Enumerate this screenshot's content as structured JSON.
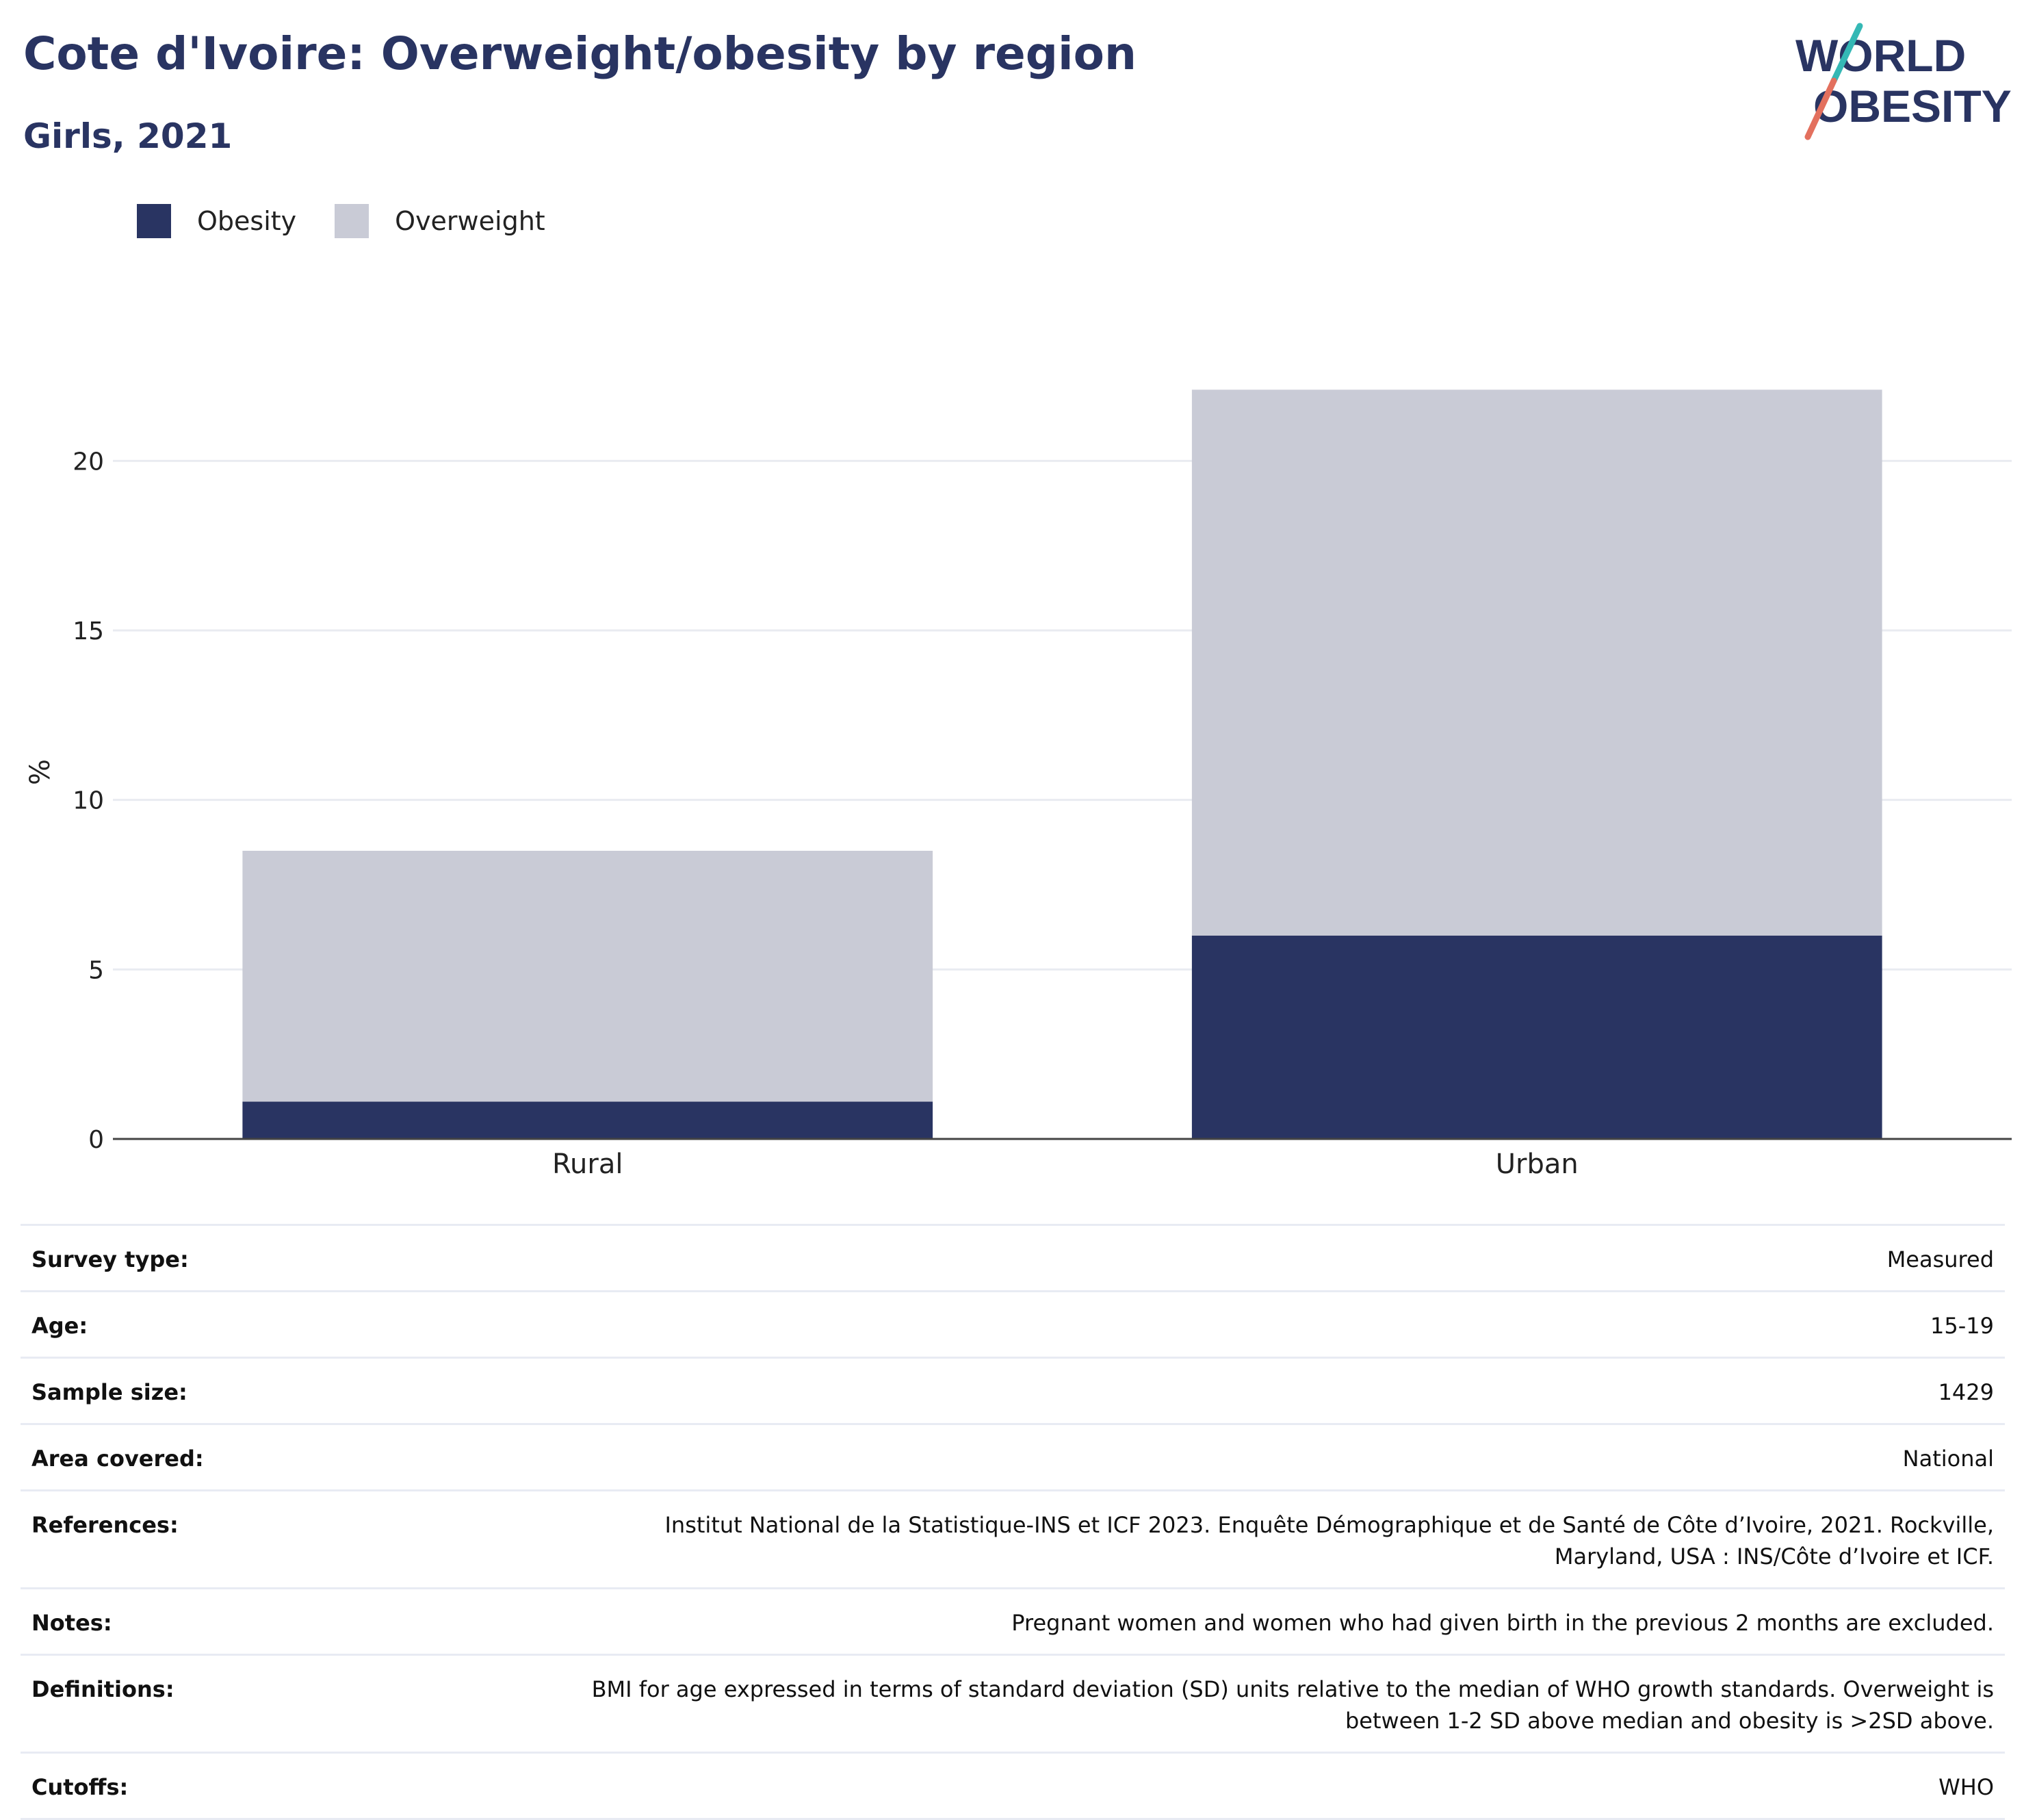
{
  "header": {
    "title": "Cote d'Ivoire: Overweight/obesity by region",
    "subtitle": "Girls, 2021",
    "logo_line1": "WORLD",
    "logo_line2": "OBESITY"
  },
  "legend": {
    "items": [
      {
        "label": "Obesity",
        "color": "#293462"
      },
      {
        "label": "Overweight",
        "color": "#c9cbd6"
      }
    ]
  },
  "chart_data": {
    "type": "bar",
    "stacked": true,
    "categories": [
      "Rural",
      "Urban"
    ],
    "series": [
      {
        "name": "Obesity",
        "values": [
          1.1,
          6.0
        ],
        "color": "#293462"
      },
      {
        "name": "Overweight",
        "values": [
          7.4,
          16.1
        ],
        "color": "#c9cbd6"
      }
    ],
    "ylabel": "%",
    "yticks": [
      0,
      5,
      10,
      15,
      20
    ],
    "ylim": [
      0,
      23.5
    ],
    "grid": true,
    "legend_position": "top-left"
  },
  "info_table": {
    "rows": [
      {
        "label": "Survey type:",
        "value": "Measured"
      },
      {
        "label": "Age:",
        "value": "15-19"
      },
      {
        "label": "Sample size:",
        "value": "1429"
      },
      {
        "label": "Area covered:",
        "value": "National"
      },
      {
        "label": "References:",
        "value": "Institut National de la Statistique-INS et ICF 2023. Enquête Démographique et de Santé de Côte d’Ivoire, 2021. Rockville, Maryland, USA : INS/Côte d’Ivoire et ICF."
      },
      {
        "label": "Notes:",
        "value": "Pregnant women and women who had given birth in the previous 2 months are excluded."
      },
      {
        "label": "Definitions:",
        "value": "BMI for age expressed in terms of standard deviation (SD) units relative to the median of WHO growth standards. Overweight is between 1-2 SD above median and obesity is >2SD above."
      },
      {
        "label": "Cutoffs:",
        "value": "WHO"
      }
    ]
  }
}
